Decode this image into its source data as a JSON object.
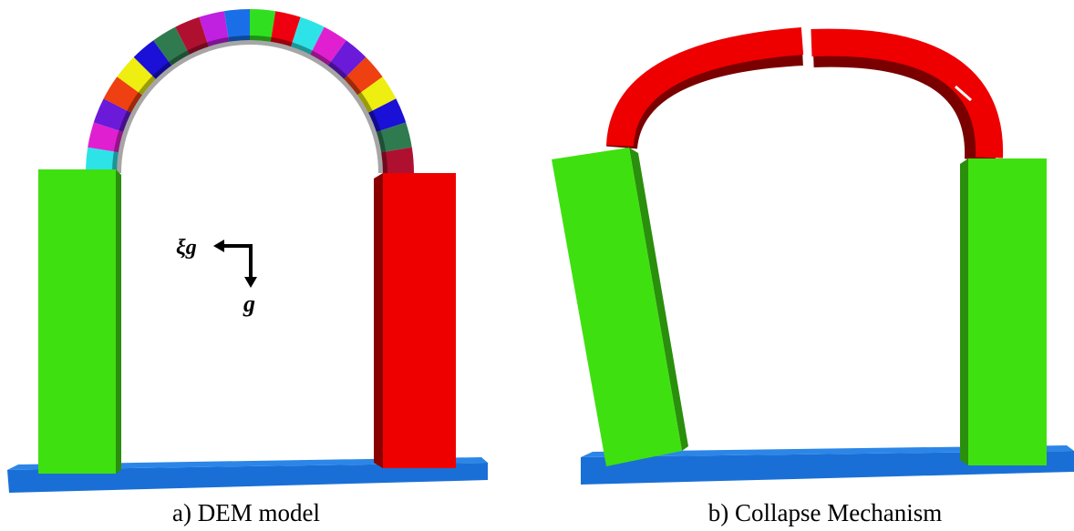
{
  "panels": [
    {
      "caption": "a) DEM model",
      "labels": {
        "lateral": "ξg",
        "gravity": "g"
      }
    },
    {
      "caption": "b) Collapse Mechanism"
    }
  ]
}
